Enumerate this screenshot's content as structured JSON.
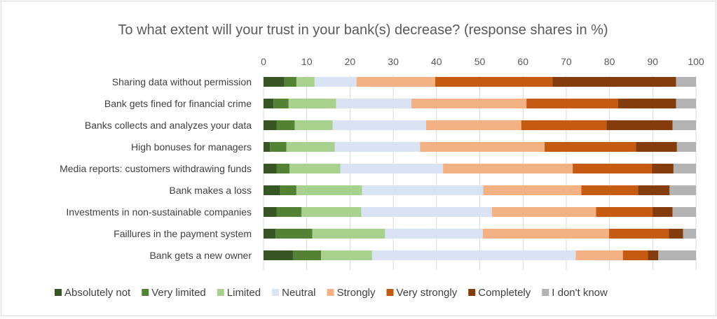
{
  "chart_data": {
    "type": "bar",
    "stacked": true,
    "orientation": "horizontal",
    "title": "To what extent will your trust in your bank(s) decrease? (response shares in %)",
    "xlim": [
      0,
      100
    ],
    "xticks": [
      0,
      10,
      20,
      30,
      40,
      50,
      60,
      70,
      80,
      90,
      100
    ],
    "xaxis_position": "top",
    "grid": true,
    "legend_position": "bottom",
    "categories": [
      "Sharing data without permission",
      "Bank gets fined for financial crime",
      "Banks collects and analyzes your data",
      "High bonuses for managers ",
      "Media reports: customers withdrawing funds",
      "Bank makes a loss",
      "Investments in non-sustainable companies",
      "Faillures in the payment system",
      "Bank gets a new owner"
    ],
    "series": [
      {
        "name": "Absolutely not",
        "color": "#375623",
        "values": [
          4.8,
          2.3,
          3.0,
          1.5,
          3.0,
          3.8,
          3.0,
          2.8,
          6.8
        ]
      },
      {
        "name": "Very limited",
        "color": "#548235",
        "values": [
          2.8,
          3.5,
          4.2,
          3.8,
          3.0,
          3.8,
          5.8,
          8.5,
          6.5
        ]
      },
      {
        "name": "Limited",
        "color": "#a9d18e",
        "values": [
          4.2,
          11.0,
          8.8,
          11.2,
          11.8,
          15.2,
          13.8,
          16.8,
          11.8
        ]
      },
      {
        "name": "Neutral",
        "color": "#dae3f3",
        "values": [
          9.7,
          17.4,
          21.6,
          19.7,
          23.7,
          28.0,
          30.2,
          22.6,
          47.1
        ]
      },
      {
        "name": "Strongly",
        "color": "#f4b183",
        "values": [
          18.2,
          26.6,
          22.0,
          28.8,
          30.0,
          22.7,
          24.1,
          29.2,
          10.9
        ]
      },
      {
        "name": "Very strongly",
        "color": "#c55a11",
        "values": [
          27.1,
          21.2,
          19.7,
          21.1,
          18.3,
          13.1,
          13.0,
          13.8,
          5.8
        ]
      },
      {
        "name": "Completely",
        "color": "#843c0c",
        "values": [
          28.6,
          13.4,
          15.3,
          9.5,
          5.0,
          7.3,
          4.7,
          3.3,
          2.4
        ]
      },
      {
        "name": "I don't know",
        "color": "#b3b3b3",
        "values": [
          4.6,
          4.6,
          5.4,
          4.4,
          5.2,
          6.1,
          5.4,
          3.0,
          8.7
        ]
      }
    ]
  }
}
